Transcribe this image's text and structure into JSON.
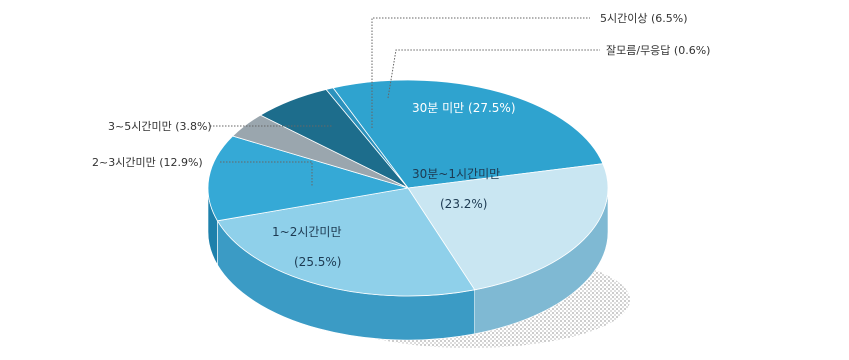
{
  "chart_data": {
    "type": "pie",
    "style": "3d-exploded-ellipse",
    "slices": [
      {
        "label": "30분 미만",
        "value": 27.5,
        "display": "30분 미만 (27.5%)",
        "color": "#2fa3cf",
        "side": "#1b7ea6"
      },
      {
        "label": "30분~1시간미만",
        "value": 23.2,
        "display_line1": "30분~1시간미만",
        "display_line2": "(23.2%)",
        "color": "#c9e6f2",
        "side": "#7fb9d3"
      },
      {
        "label": "1~2시간미만",
        "value": 25.5,
        "display_line1": "1~2시간미만",
        "display_line2": "(25.5%)",
        "color": "#8fd0ea",
        "side": "#3b9bc5"
      },
      {
        "label": "2~3시간미만",
        "value": 12.9,
        "display": "2~3시간미만 (12.9%)",
        "color": "#35a9d6",
        "side": "#1d80ab"
      },
      {
        "label": "3~5시간미만",
        "value": 3.8,
        "display": "3~5시간미만 (3.8%)",
        "color": "#9aa6ae",
        "side": "#6f7c86"
      },
      {
        "label": "5시간이상",
        "value": 6.5,
        "display": "5시간이상 (6.5%)",
        "color": "#1d6d8c",
        "side": "#144f68"
      },
      {
        "label": "잘모름/무응답",
        "value": 0.6,
        "display": "잘모름/무응답 (0.6%)",
        "color": "#2c92bd",
        "side": "#1b6e91"
      }
    ]
  }
}
